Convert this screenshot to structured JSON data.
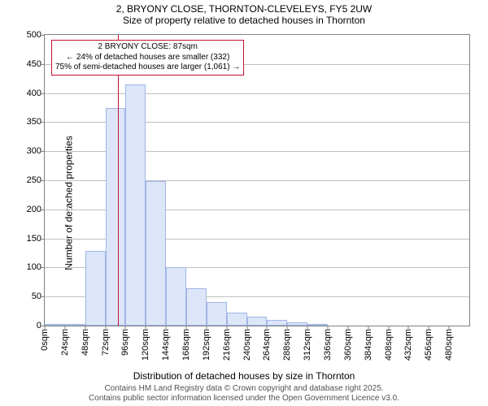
{
  "title_line1": "2, BRYONY CLOSE, THORNTON-CLEVELEYS, FY5 2UW",
  "title_line2": "Size of property relative to detached houses in Thornton",
  "y_axis_label": "Number of detached properties",
  "x_axis_label": "Distribution of detached houses by size in Thornton",
  "attribution_line1": "Contains HM Land Registry data © Crown copyright and database right 2025.",
  "attribution_line2": "Contains public sector information licensed under the Open Government Licence v3.0.",
  "chart": {
    "type": "histogram",
    "background_color": "#ffffff",
    "grid_color": "#c0c0c0",
    "axis_color": "#808080",
    "bar_fill": "#dde6f8",
    "bar_border": "#9fb6e6",
    "marker_color": "#c01030",
    "font_size_labels": 12,
    "font_size_ticks": 11,
    "font_size_callout": 10,
    "ylim": [
      0,
      500
    ],
    "ytick_step": 50,
    "xlim": [
      0,
      504
    ],
    "xtick_step": 24,
    "xtick_suffix": "sqm",
    "bin_width_sqm": 24,
    "bins": [
      {
        "start": 0,
        "count": 3
      },
      {
        "start": 24,
        "count": 3
      },
      {
        "start": 48,
        "count": 128
      },
      {
        "start": 72,
        "count": 375
      },
      {
        "start": 96,
        "count": 415
      },
      {
        "start": 120,
        "count": 248
      },
      {
        "start": 144,
        "count": 100
      },
      {
        "start": 168,
        "count": 64
      },
      {
        "start": 192,
        "count": 40
      },
      {
        "start": 216,
        "count": 22
      },
      {
        "start": 240,
        "count": 16
      },
      {
        "start": 264,
        "count": 10
      },
      {
        "start": 288,
        "count": 6
      },
      {
        "start": 312,
        "count": 3
      },
      {
        "start": 336,
        "count": 0
      },
      {
        "start": 360,
        "count": 0
      },
      {
        "start": 384,
        "count": 0
      },
      {
        "start": 408,
        "count": 0
      },
      {
        "start": 432,
        "count": 0
      },
      {
        "start": 456,
        "count": 0
      },
      {
        "start": 480,
        "count": 0
      }
    ],
    "marker_value_sqm": 87,
    "callout": {
      "line1": "2 BRYONY CLOSE: 87sqm",
      "line2": "← 24% of detached houses are smaller (332)",
      "line3": "75% of semi-detached houses are larger (1,061) →"
    }
  }
}
